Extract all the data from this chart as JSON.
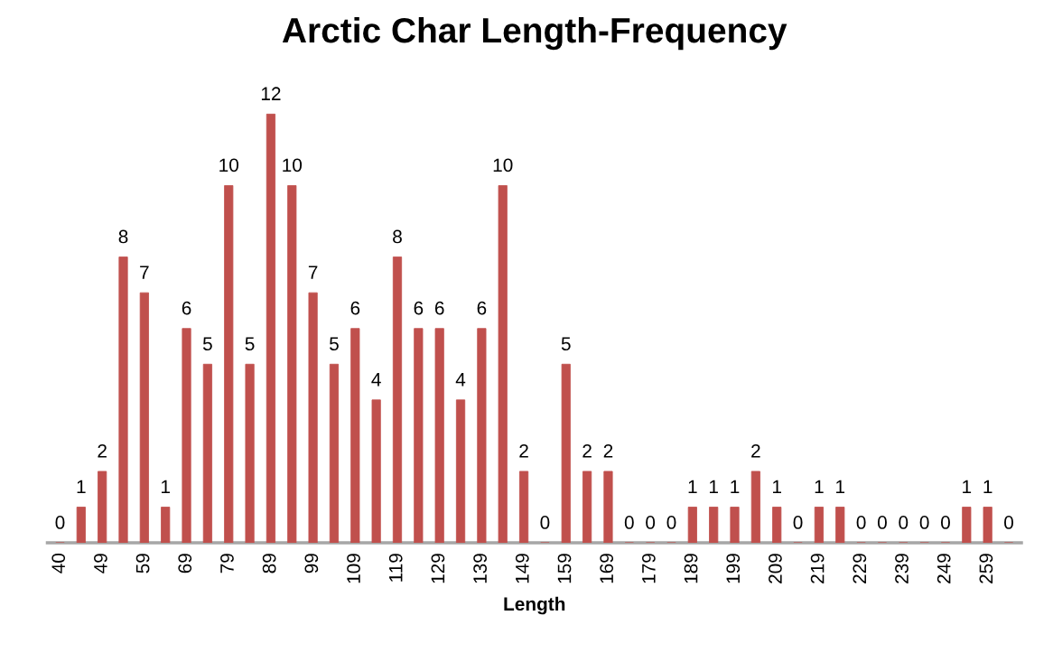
{
  "chart_data": {
    "type": "bar",
    "title": "Arctic Char Length-Frequency",
    "xlabel": "Length",
    "categories": [
      "40",
      null,
      "49",
      null,
      "59",
      null,
      "69",
      null,
      "79",
      null,
      "89",
      null,
      "99",
      null,
      "109",
      null,
      "119",
      null,
      "129",
      null,
      "139",
      null,
      "149",
      null,
      "159",
      null,
      "169",
      null,
      "179",
      null,
      "189",
      null,
      "199",
      null,
      "209",
      null,
      "219",
      null,
      "229",
      null,
      "239",
      null,
      "249",
      null,
      "259",
      null
    ],
    "values": [
      0,
      1,
      2,
      8,
      7,
      1,
      6,
      5,
      10,
      5,
      12,
      10,
      7,
      5,
      6,
      4,
      8,
      6,
      6,
      4,
      6,
      10,
      2,
      0,
      5,
      2,
      2,
      0,
      0,
      0,
      1,
      1,
      1,
      2,
      1,
      0,
      1,
      1,
      0,
      0,
      0,
      0,
      0,
      1,
      1,
      0
    ],
    "color": "#c0504d",
    "data_labels": true,
    "tick_labels": "x",
    "grid": false,
    "legend": false
  }
}
